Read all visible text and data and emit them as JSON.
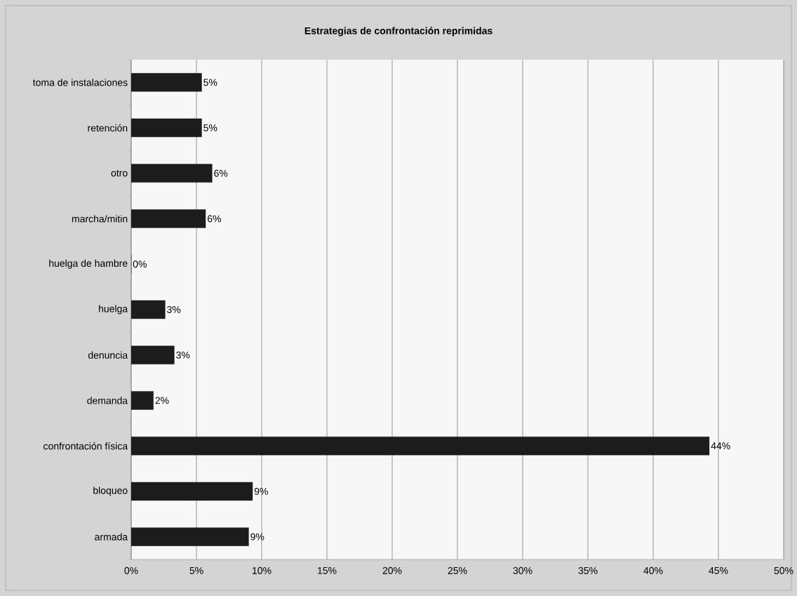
{
  "chart_data": {
    "type": "bar",
    "orientation": "horizontal",
    "title": "Estrategias de confrontación reprimidas",
    "categories": [
      "toma de instalaciones",
      "retención",
      "otro",
      "marcha/mitin",
      "huelga de hambre",
      "huelga",
      "denuncia",
      "demanda",
      "confrontación física",
      "bloqueo",
      "armada"
    ],
    "values": [
      5.4,
      5.4,
      6.2,
      5.7,
      0,
      2.6,
      3.3,
      1.7,
      44.3,
      9.3,
      9.0
    ],
    "value_labels": [
      "5%",
      "5%",
      "6%",
      "6%",
      "0%",
      "3%",
      "3%",
      "2%",
      "44%",
      "9%",
      "9%"
    ],
    "color": "#1c1c1c",
    "xlim": [
      0,
      50
    ],
    "xticks": [
      {
        "value": 0,
        "label": "0%"
      },
      {
        "value": 5,
        "label": "5%"
      },
      {
        "value": 10,
        "label": "10%"
      },
      {
        "value": 15,
        "label": "15%"
      },
      {
        "value": 20,
        "label": "20%"
      },
      {
        "value": 25,
        "label": "25%"
      },
      {
        "value": 30,
        "label": "30%"
      },
      {
        "value": 35,
        "label": "35%"
      },
      {
        "value": 40,
        "label": "40%"
      },
      {
        "value": 45,
        "label": "45%"
      },
      {
        "value": 50,
        "label": "50%"
      }
    ],
    "grid": "x"
  }
}
